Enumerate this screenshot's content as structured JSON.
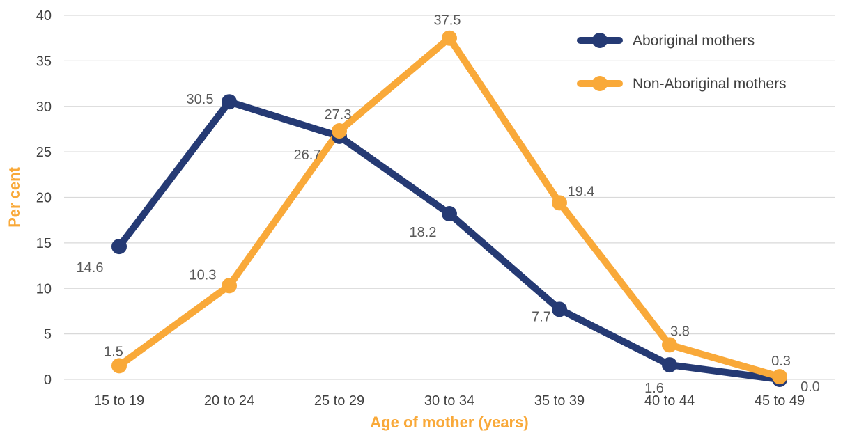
{
  "chart_data": {
    "type": "line",
    "categories": [
      "15 to 19",
      "20 to 24",
      "25 to 29",
      "30 to 34",
      "35 to 39",
      "40 to 44",
      "45 to 49"
    ],
    "series": [
      {
        "name": "Aboriginal mothers",
        "color": "#253a74",
        "values": [
          14.6,
          30.5,
          26.7,
          18.2,
          7.7,
          1.6,
          0.0
        ],
        "labels": [
          "14.6",
          "30.5",
          "26.7",
          "18.2",
          "7.7",
          "1.6",
          "0.0"
        ]
      },
      {
        "name": "Non-Aboriginal mothers",
        "color": "#f9a939",
        "values": [
          1.5,
          10.3,
          27.3,
          37.5,
          19.4,
          3.8,
          0.3
        ],
        "labels": [
          "1.5",
          "10.3",
          "27.3",
          "37.5",
          "19.4",
          "3.8",
          "0.3"
        ]
      }
    ],
    "xlabel": "Age of mother (years)",
    "ylabel": "Per cent",
    "ylim": [
      0,
      40
    ],
    "yticks": [
      "0",
      "5",
      "10",
      "15",
      "20",
      "25",
      "30",
      "35",
      "40"
    ],
    "grid": true,
    "legend_position": "top-right",
    "axis_title_color": "#f9a939"
  }
}
